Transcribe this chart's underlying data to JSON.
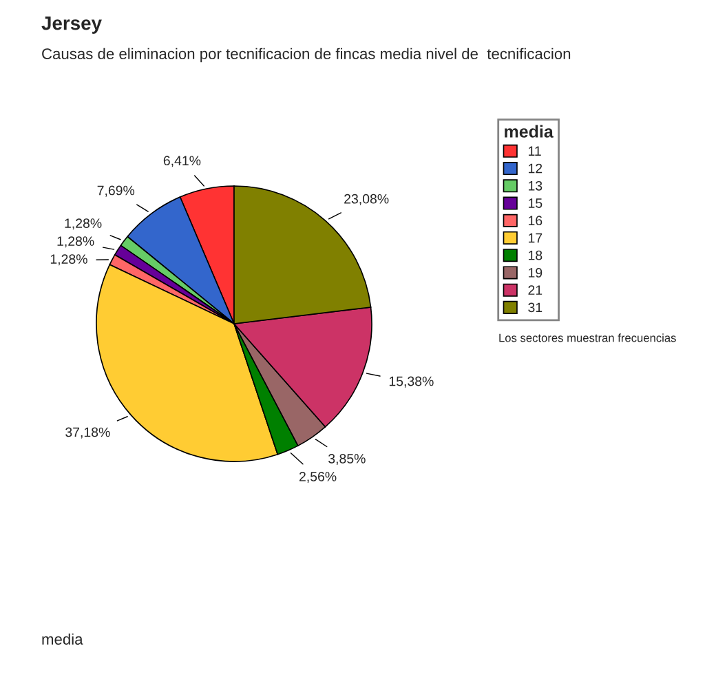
{
  "chart_data": {
    "type": "pie",
    "title": "Jersey",
    "subtitle": "Causas de eliminacion por tecnificacion de fincas media nivel de  tecnificacion",
    "categories": [
      "11",
      "12",
      "13",
      "15",
      "16",
      "17",
      "18",
      "19",
      "21",
      "31"
    ],
    "values": [
      6.41,
      7.69,
      1.28,
      1.28,
      1.28,
      37.18,
      2.56,
      3.85,
      15.38,
      23.08
    ],
    "colors": [
      "#ff3333",
      "#3366cc",
      "#66cc66",
      "#660099",
      "#ff6666",
      "#ffcc33",
      "#008000",
      "#996666",
      "#cc3366",
      "#808000"
    ],
    "value_labels": [
      "6,41%",
      "7,69%",
      "1,28%",
      "1,28%",
      "1,28%",
      "37,18%",
      "2,56%",
      "3,85%",
      "15,38%",
      "23,08%"
    ],
    "legend_title": "media",
    "legend": "right",
    "annotations": [
      "Los sectores muestran frecuencias",
      "media"
    ]
  }
}
